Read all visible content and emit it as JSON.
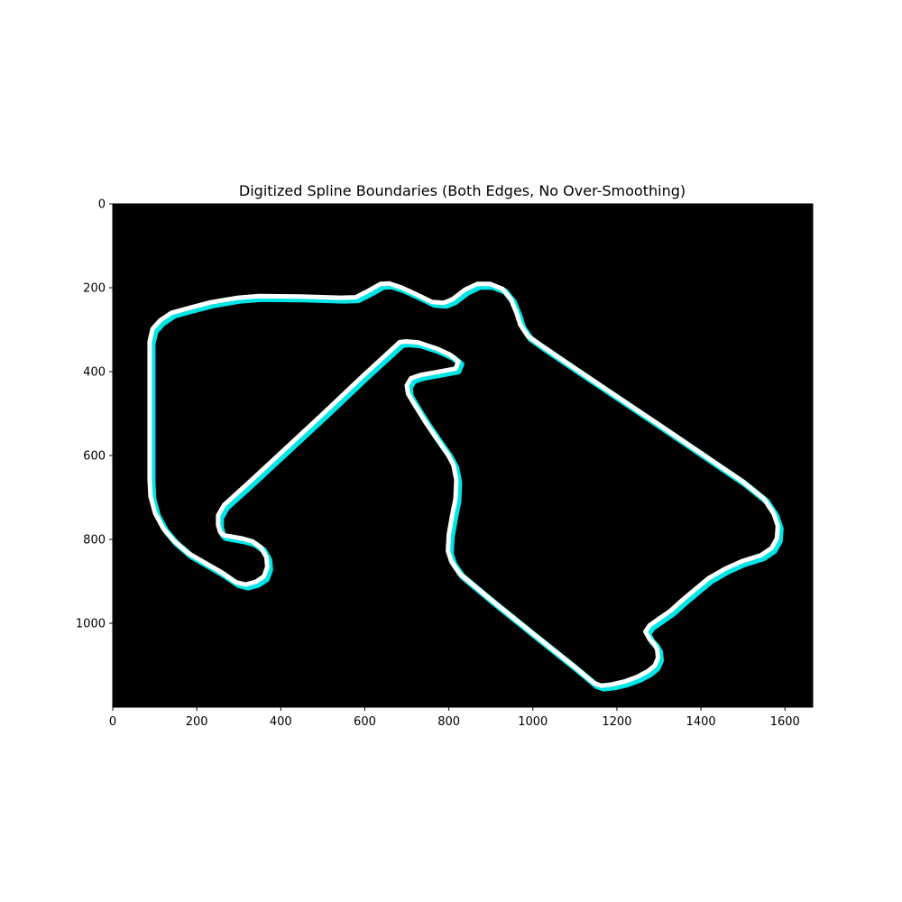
{
  "chart_data": {
    "type": "line",
    "title": "Digitized Spline Boundaries (Both Edges, No Over-Smoothing)",
    "xlabel": "",
    "ylabel": "",
    "xlim": [
      0,
      1666
    ],
    "ylim": [
      1200,
      0
    ],
    "y_axis_inverted": true,
    "grid": false,
    "legend": "none",
    "background_color": "#000000",
    "x_ticks": [
      0,
      200,
      400,
      600,
      800,
      1000,
      1200,
      1400,
      1600
    ],
    "y_ticks": [
      0,
      200,
      400,
      600,
      800,
      1000
    ],
    "series": [
      {
        "color": "#00e5e5",
        "points": [
          [
            90,
            330
          ],
          [
            97,
            300
          ],
          [
            115,
            280
          ],
          [
            142,
            262
          ],
          [
            185,
            250
          ],
          [
            235,
            237
          ],
          [
            300,
            226
          ],
          [
            350,
            222
          ],
          [
            450,
            223
          ],
          [
            545,
            226
          ],
          [
            580,
            225
          ],
          [
            610,
            210
          ],
          [
            640,
            193
          ],
          [
            660,
            192
          ],
          [
            690,
            202
          ],
          [
            725,
            218
          ],
          [
            762,
            236
          ],
          [
            790,
            238
          ],
          [
            810,
            230
          ],
          [
            840,
            207
          ],
          [
            870,
            193
          ],
          [
            900,
            193
          ],
          [
            930,
            205
          ],
          [
            950,
            230
          ],
          [
            963,
            262
          ],
          [
            972,
            290
          ],
          [
            990,
            317
          ],
          [
            1015,
            335
          ],
          [
            1100,
            393
          ],
          [
            1200,
            460
          ],
          [
            1300,
            527
          ],
          [
            1400,
            595
          ],
          [
            1500,
            663
          ],
          [
            1552,
            705
          ],
          [
            1575,
            740
          ],
          [
            1585,
            770
          ],
          [
            1583,
            800
          ],
          [
            1570,
            823
          ],
          [
            1545,
            840
          ],
          [
            1500,
            854
          ],
          [
            1460,
            872
          ],
          [
            1420,
            895
          ],
          [
            1390,
            920
          ],
          [
            1360,
            945
          ],
          [
            1330,
            972
          ],
          [
            1300,
            993
          ],
          [
            1280,
            1007
          ],
          [
            1270,
            1022
          ],
          [
            1280,
            1040
          ],
          [
            1290,
            1050
          ],
          [
            1298,
            1065
          ],
          [
            1300,
            1085
          ],
          [
            1292,
            1103
          ],
          [
            1275,
            1117
          ],
          [
            1250,
            1130
          ],
          [
            1220,
            1141
          ],
          [
            1190,
            1148
          ],
          [
            1165,
            1151
          ],
          [
            1148,
            1145
          ],
          [
            1100,
            1105
          ],
          [
            1000,
            1025
          ],
          [
            900,
            944
          ],
          [
            828,
            884
          ],
          [
            808,
            855
          ],
          [
            800,
            830
          ],
          [
            802,
            790
          ],
          [
            810,
            745
          ],
          [
            818,
            705
          ],
          [
            820,
            660
          ],
          [
            813,
            625
          ],
          [
            800,
            600
          ],
          [
            772,
            560
          ],
          [
            745,
            520
          ],
          [
            720,
            480
          ],
          [
            705,
            455
          ],
          [
            702,
            435
          ],
          [
            712,
            418
          ],
          [
            735,
            410
          ],
          [
            780,
            402
          ],
          [
            818,
            395
          ],
          [
            825,
            378
          ],
          [
            805,
            362
          ],
          [
            775,
            348
          ],
          [
            730,
            333
          ],
          [
            700,
            330
          ],
          [
            685,
            332
          ],
          [
            600,
            410
          ],
          [
            500,
            505
          ],
          [
            400,
            598
          ],
          [
            320,
            672
          ],
          [
            267,
            720
          ],
          [
            253,
            745
          ],
          [
            253,
            768
          ],
          [
            258,
            785
          ],
          [
            265,
            792
          ],
          [
            310,
            800
          ],
          [
            335,
            807
          ],
          [
            355,
            822
          ],
          [
            368,
            845
          ],
          [
            370,
            868
          ],
          [
            362,
            890
          ],
          [
            343,
            903
          ],
          [
            318,
            910
          ],
          [
            295,
            904
          ],
          [
            260,
            880
          ],
          [
            220,
            857
          ],
          [
            182,
            835
          ],
          [
            147,
            805
          ],
          [
            122,
            775
          ],
          [
            103,
            740
          ],
          [
            92,
            700
          ],
          [
            90,
            660
          ],
          [
            90,
            400
          ],
          [
            90,
            330
          ]
        ]
      },
      {
        "color": "#ffffff",
        "points": [
          [
            90,
            330
          ],
          [
            97,
            300
          ],
          [
            115,
            280
          ],
          [
            142,
            262
          ],
          [
            185,
            250
          ],
          [
            235,
            237
          ],
          [
            300,
            226
          ],
          [
            350,
            222
          ],
          [
            450,
            223
          ],
          [
            545,
            226
          ],
          [
            580,
            225
          ],
          [
            610,
            210
          ],
          [
            640,
            193
          ],
          [
            660,
            192
          ],
          [
            690,
            202
          ],
          [
            725,
            218
          ],
          [
            762,
            236
          ],
          [
            790,
            238
          ],
          [
            810,
            230
          ],
          [
            840,
            207
          ],
          [
            870,
            193
          ],
          [
            900,
            193
          ],
          [
            930,
            205
          ],
          [
            950,
            230
          ],
          [
            963,
            262
          ],
          [
            972,
            290
          ],
          [
            990,
            317
          ],
          [
            1015,
            335
          ],
          [
            1100,
            393
          ],
          [
            1200,
            460
          ],
          [
            1300,
            527
          ],
          [
            1400,
            595
          ],
          [
            1500,
            663
          ],
          [
            1552,
            705
          ],
          [
            1575,
            740
          ],
          [
            1585,
            770
          ],
          [
            1583,
            800
          ],
          [
            1570,
            823
          ],
          [
            1545,
            840
          ],
          [
            1500,
            854
          ],
          [
            1460,
            872
          ],
          [
            1420,
            895
          ],
          [
            1390,
            920
          ],
          [
            1360,
            945
          ],
          [
            1330,
            972
          ],
          [
            1300,
            993
          ],
          [
            1280,
            1007
          ],
          [
            1270,
            1022
          ],
          [
            1280,
            1040
          ],
          [
            1290,
            1050
          ],
          [
            1298,
            1065
          ],
          [
            1300,
            1085
          ],
          [
            1292,
            1103
          ],
          [
            1275,
            1117
          ],
          [
            1250,
            1130
          ],
          [
            1220,
            1141
          ],
          [
            1190,
            1148
          ],
          [
            1165,
            1151
          ],
          [
            1148,
            1145
          ],
          [
            1100,
            1105
          ],
          [
            1000,
            1025
          ],
          [
            900,
            944
          ],
          [
            828,
            884
          ],
          [
            808,
            855
          ],
          [
            800,
            830
          ],
          [
            802,
            790
          ],
          [
            810,
            745
          ],
          [
            818,
            705
          ],
          [
            820,
            660
          ],
          [
            813,
            625
          ],
          [
            800,
            600
          ],
          [
            772,
            560
          ],
          [
            745,
            520
          ],
          [
            720,
            480
          ],
          [
            705,
            455
          ],
          [
            702,
            435
          ],
          [
            712,
            418
          ],
          [
            735,
            410
          ],
          [
            780,
            402
          ],
          [
            818,
            395
          ],
          [
            825,
            378
          ],
          [
            805,
            362
          ],
          [
            775,
            348
          ],
          [
            730,
            333
          ],
          [
            700,
            330
          ],
          [
            685,
            332
          ],
          [
            600,
            410
          ],
          [
            500,
            505
          ],
          [
            400,
            598
          ],
          [
            320,
            672
          ],
          [
            267,
            720
          ],
          [
            253,
            745
          ],
          [
            253,
            768
          ],
          [
            258,
            785
          ],
          [
            265,
            792
          ],
          [
            310,
            800
          ],
          [
            335,
            807
          ],
          [
            355,
            822
          ],
          [
            368,
            845
          ],
          [
            370,
            868
          ],
          [
            362,
            890
          ],
          [
            343,
            903
          ],
          [
            318,
            910
          ],
          [
            295,
            904
          ],
          [
            260,
            880
          ],
          [
            220,
            857
          ],
          [
            182,
            835
          ],
          [
            147,
            805
          ],
          [
            122,
            775
          ],
          [
            103,
            740
          ],
          [
            92,
            700
          ],
          [
            90,
            660
          ],
          [
            90,
            400
          ],
          [
            90,
            330
          ]
        ]
      }
    ]
  }
}
